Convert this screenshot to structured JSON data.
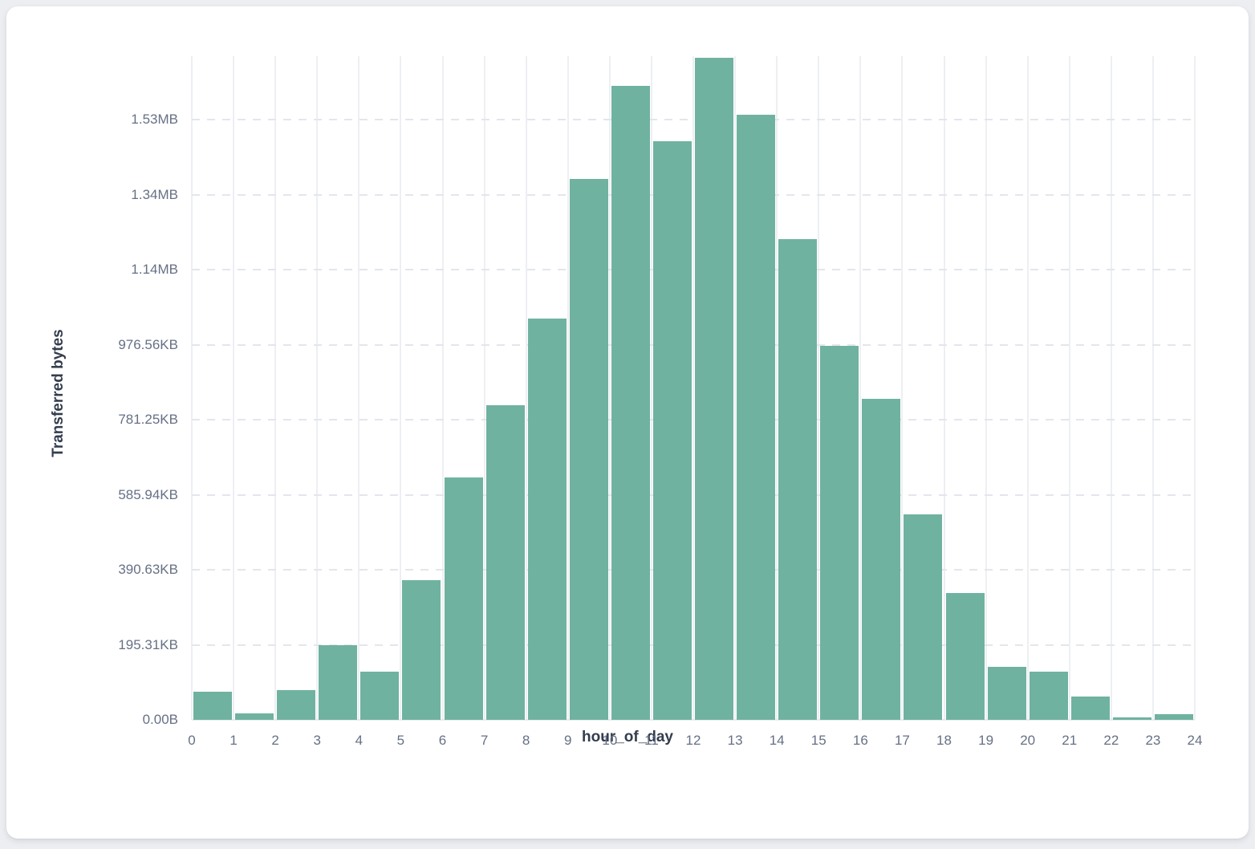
{
  "card": {
    "background": "#ffffff"
  },
  "page": {
    "background": "#eceef1"
  },
  "chart_data": {
    "type": "bar",
    "title": "",
    "xlabel": "hour_of_day",
    "ylabel": "Transferred bytes",
    "unit": "bytes",
    "bar_color": "#6fb2a0",
    "grid": "horizontal dashed, vertical solid",
    "legend": "none",
    "categories": [
      0,
      1,
      2,
      3,
      4,
      5,
      6,
      7,
      8,
      9,
      10,
      11,
      12,
      13,
      14,
      15,
      16,
      17,
      18,
      19,
      20,
      21,
      22,
      23
    ],
    "values": [
      75000,
      17000,
      79000,
      199000,
      128000,
      372000,
      646000,
      840000,
      1071000,
      1443000,
      1691000,
      1544000,
      1766000,
      1614000,
      1281000,
      998000,
      857000,
      547000,
      338000,
      141000,
      128000,
      62000,
      7000,
      15000
    ],
    "x_tick_labels": [
      "0",
      "1",
      "2",
      "3",
      "4",
      "5",
      "6",
      "7",
      "8",
      "9",
      "10",
      "11",
      "12",
      "13",
      "14",
      "15",
      "16",
      "17",
      "18",
      "19",
      "20",
      "21",
      "22",
      "23",
      "24"
    ],
    "y_ticks": [
      {
        "label": "0.00B",
        "bytes": 0
      },
      {
        "label": "195.31KB",
        "bytes": 200000
      },
      {
        "label": "390.63KB",
        "bytes": 400000
      },
      {
        "label": "585.94KB",
        "bytes": 600000
      },
      {
        "label": "781.25KB",
        "bytes": 800000
      },
      {
        "label": "976.56KB",
        "bytes": 1000000
      },
      {
        "label": "1.14MB",
        "bytes": 1200000
      },
      {
        "label": "1.34MB",
        "bytes": 1400000
      },
      {
        "label": "1.53MB",
        "bytes": 1600000
      }
    ],
    "ylim": [
      0,
      1770000
    ]
  }
}
